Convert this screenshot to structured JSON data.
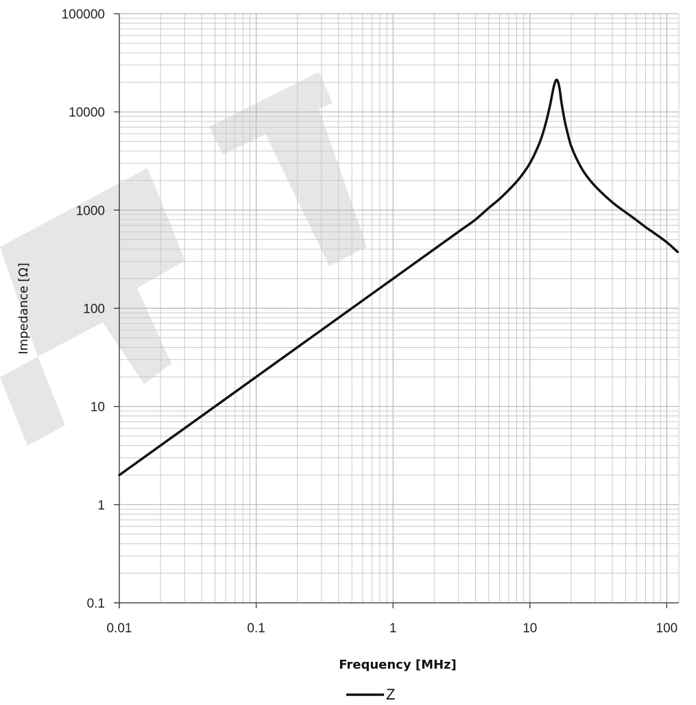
{
  "chart_data": {
    "type": "line",
    "title": "",
    "xlabel": "Frequency [MHz]",
    "ylabel": "Impedance [Ω]",
    "x_scale": "log",
    "y_scale": "log",
    "xlim": [
      0.01,
      120
    ],
    "ylim": [
      0.1,
      100000
    ],
    "grid": true,
    "legend": "bottom-center",
    "x_ticks": [
      "0.01",
      "0.1",
      "1",
      "10",
      "100"
    ],
    "y_ticks": [
      "0.1",
      "1",
      "10",
      "100",
      "1000",
      "10000",
      "100000"
    ],
    "watermark": "DRAFT",
    "series": [
      {
        "name": "Z",
        "color": "#111111",
        "x": [
          0.01,
          0.02,
          0.05,
          0.1,
          0.2,
          0.5,
          1,
          2,
          3,
          4,
          5,
          6,
          7,
          8,
          9,
          10,
          11,
          12,
          13,
          14,
          14.5,
          15,
          15.5,
          16,
          16.5,
          17,
          18,
          19,
          20,
          22,
          25,
          30,
          40,
          50,
          60,
          70,
          80,
          100,
          120
        ],
        "y": [
          2,
          4,
          10,
          20,
          40,
          100,
          200,
          400,
          600,
          800,
          1050,
          1300,
          1600,
          1950,
          2400,
          3000,
          3900,
          5200,
          7500,
          11500,
          14800,
          18500,
          21000,
          20500,
          17000,
          12500,
          8000,
          5800,
          4500,
          3300,
          2400,
          1750,
          1200,
          950,
          790,
          670,
          590,
          470,
          375
        ]
      }
    ]
  }
}
